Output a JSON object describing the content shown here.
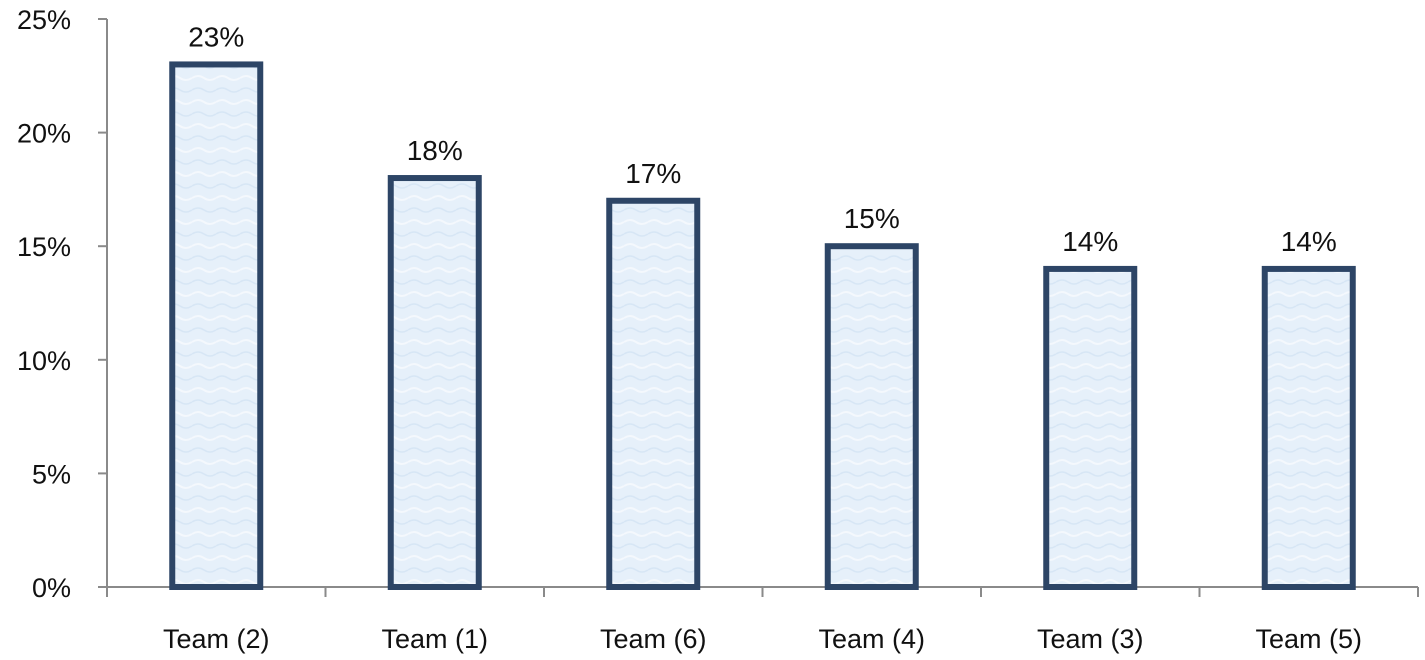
{
  "chart_data": {
    "type": "bar",
    "categories": [
      "Team (2)",
      "Team (1)",
      "Team (6)",
      "Team (4)",
      "Team (3)",
      "Team (5)"
    ],
    "values": [
      23,
      18,
      17,
      15,
      14,
      14
    ],
    "data_labels": [
      "23%",
      "18%",
      "17%",
      "15%",
      "14%",
      "14%"
    ],
    "title": "",
    "xlabel": "",
    "ylabel": "",
    "ylim": [
      0,
      25
    ],
    "yticks": [
      0,
      5,
      10,
      15,
      20,
      25
    ],
    "ytick_labels": [
      "0%",
      "5%",
      "10%",
      "15%",
      "20%",
      "25%"
    ],
    "grid": false,
    "legend": "none",
    "colors": {
      "bar_fill": "#e6f0fa",
      "bar_stroke": "#2d4566",
      "axis": "#8a8a8a"
    }
  }
}
